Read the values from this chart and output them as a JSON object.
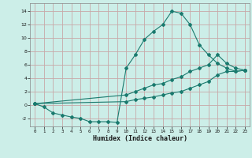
{
  "xlabel": "Humidex (Indice chaleur)",
  "bg_color": "#cceee8",
  "grid_color": "#c8a8a8",
  "line_color": "#1a7a6e",
  "xlim": [
    -0.5,
    23.5
  ],
  "ylim": [
    -3.2,
    15.2
  ],
  "yticks": [
    -2,
    0,
    2,
    4,
    6,
    8,
    10,
    12,
    14
  ],
  "xticks": [
    0,
    1,
    2,
    3,
    4,
    5,
    6,
    7,
    8,
    9,
    10,
    11,
    12,
    13,
    14,
    15,
    16,
    17,
    18,
    19,
    20,
    21,
    22,
    23
  ],
  "line1_x": [
    0,
    1,
    2,
    3,
    4,
    5,
    6,
    7,
    8,
    9,
    10,
    11,
    12,
    13,
    14,
    15,
    16,
    17,
    18,
    19,
    20,
    21,
    22,
    23
  ],
  "line1_y": [
    0.2,
    -0.3,
    -1.2,
    -1.5,
    -1.8,
    -2.0,
    -2.5,
    -2.5,
    -2.5,
    -2.6,
    5.5,
    7.5,
    9.8,
    11.0,
    12.0,
    14.0,
    13.7,
    12.0,
    9.0,
    7.5,
    6.2,
    5.5,
    5.0,
    5.2
  ],
  "line2_x": [
    0,
    10,
    11,
    12,
    13,
    14,
    15,
    16,
    17,
    18,
    19,
    20,
    21,
    22,
    23
  ],
  "line2_y": [
    0.2,
    1.5,
    2.0,
    2.5,
    3.0,
    3.2,
    3.8,
    4.2,
    5.0,
    5.5,
    6.0,
    7.5,
    6.2,
    5.5,
    5.2
  ],
  "line3_x": [
    0,
    10,
    11,
    12,
    13,
    14,
    15,
    16,
    17,
    18,
    19,
    20,
    21,
    22,
    23
  ],
  "line3_y": [
    0.2,
    0.5,
    0.8,
    1.0,
    1.2,
    1.5,
    1.8,
    2.0,
    2.5,
    3.0,
    3.5,
    4.5,
    5.0,
    5.0,
    5.2
  ]
}
